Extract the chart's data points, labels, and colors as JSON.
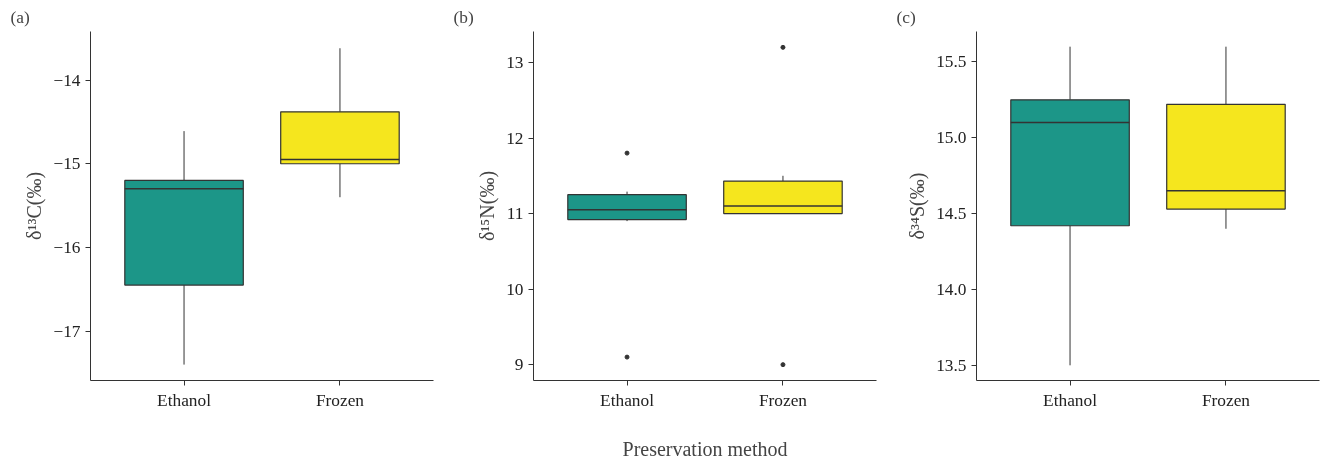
{
  "chart_data": [
    {
      "type": "box",
      "title": "(a)",
      "ylabel": "δ¹³C(‰)",
      "categories": [
        "Ethanol",
        "Frozen"
      ],
      "colors": [
        "#1c9688",
        "#f5e61e"
      ],
      "boxes": [
        {
          "low": -17.4,
          "q1": -16.45,
          "median": -15.3,
          "q3": -15.2,
          "high": -14.61
        },
        {
          "low": -15.4,
          "q1": -15.0,
          "median": -14.95,
          "q3": -14.38,
          "high": -13.62
        }
      ],
      "ylim": [
        -17.59,
        -13.42
      ],
      "yticks": [
        -17,
        -16,
        -15,
        -14
      ]
    },
    {
      "type": "box",
      "title": "(b)",
      "ylabel": "δ¹⁵N(‰)",
      "xlabel": "Preservation method",
      "categories": [
        "Ethanol",
        "Frozen"
      ],
      "colors": [
        "#1c9688",
        "#f5e61e"
      ],
      "boxes": [
        {
          "low": 10.9,
          "q1": 10.92,
          "median": 11.05,
          "q3": 11.25,
          "high": 11.29,
          "outliers": [
            11.8,
            9.1
          ]
        },
        {
          "low": 11.0,
          "q1": 11.0,
          "median": 11.1,
          "q3": 11.43,
          "high": 11.5,
          "outliers": [
            13.2,
            9.0
          ]
        }
      ],
      "ylim": [
        8.79,
        13.41
      ],
      "yticks": [
        9,
        10,
        11,
        12,
        13
      ]
    },
    {
      "type": "box",
      "title": "(c)",
      "ylabel": "δ³⁴S(‰)",
      "categories": [
        "Ethanol",
        "Frozen"
      ],
      "colors": [
        "#1c9688",
        "#f5e61e"
      ],
      "boxes": [
        {
          "low": 13.5,
          "q1": 14.42,
          "median": 15.1,
          "q3": 15.25,
          "high": 15.6
        },
        {
          "low": 14.4,
          "q1": 14.53,
          "median": 14.65,
          "q3": 15.22,
          "high": 15.6
        }
      ],
      "ylim": [
        13.4,
        15.7
      ],
      "yticks": [
        13.5,
        {
          "value": 14,
          "label": "14.0"
        },
        14.5,
        {
          "value": 15,
          "label": "15.0"
        },
        15.5
      ]
    }
  ]
}
